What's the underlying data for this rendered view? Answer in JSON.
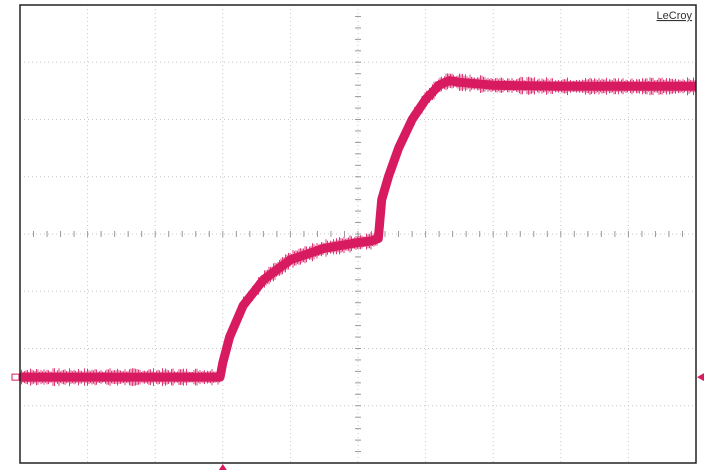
{
  "brand": {
    "name": "LeCroy"
  },
  "colors": {
    "trace": "#d81b60",
    "grid": "#c8c8c8",
    "frame": "#222222",
    "background": "#ffffff"
  },
  "chart_data": {
    "type": "line",
    "title": "",
    "xlabel": "",
    "ylabel": "",
    "grid": true,
    "divisions": {
      "x": 10,
      "y": 8
    },
    "xlim": [
      0,
      10
    ],
    "ylim": [
      0,
      8
    ],
    "series": [
      {
        "name": "",
        "x": [
          0,
          2.5,
          2.96,
          3.0,
          3.1,
          3.3,
          3.6,
          4.0,
          4.5,
          5.0,
          5.2,
          5.3,
          5.35,
          5.45,
          5.6,
          5.8,
          6.0,
          6.2,
          6.35,
          6.5,
          7.0,
          8.0,
          9.0,
          10.0
        ],
        "y": [
          1.5,
          1.5,
          1.5,
          1.75,
          2.2,
          2.75,
          3.2,
          3.55,
          3.75,
          3.85,
          3.88,
          3.92,
          4.6,
          5.0,
          5.5,
          6.0,
          6.35,
          6.6,
          6.68,
          6.65,
          6.6,
          6.58,
          6.58,
          6.58
        ]
      }
    ],
    "markers": {
      "trigger_x": 3.0,
      "ground_y": 1.5
    }
  }
}
